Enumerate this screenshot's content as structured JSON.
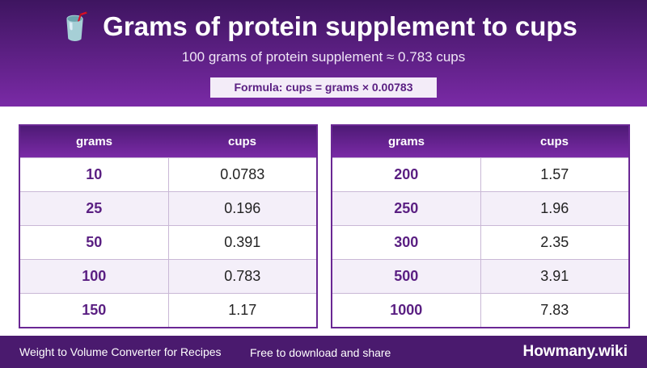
{
  "header": {
    "icon": "🥤",
    "title": "Grams of protein supplement to cups",
    "subtitle": "100 grams of protein supplement ≈ 0.783 cups",
    "formula": "Formula: cups = grams × 0.00783"
  },
  "tables": [
    {
      "columns": [
        "grams",
        "cups"
      ],
      "rows": [
        [
          "10",
          "0.0783"
        ],
        [
          "25",
          "0.196"
        ],
        [
          "50",
          "0.391"
        ],
        [
          "100",
          "0.783"
        ],
        [
          "150",
          "1.17"
        ]
      ]
    },
    {
      "columns": [
        "grams",
        "cups"
      ],
      "rows": [
        [
          "200",
          "1.57"
        ],
        [
          "250",
          "1.96"
        ],
        [
          "300",
          "2.35"
        ],
        [
          "500",
          "3.91"
        ],
        [
          "1000",
          "7.83"
        ]
      ]
    }
  ],
  "footer": {
    "left": "Weight to Volume Converter for Recipes",
    "middle": "Free to download and share",
    "brand": "Howmany.wiki"
  }
}
